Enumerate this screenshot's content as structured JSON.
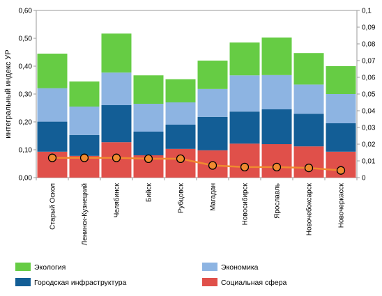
{
  "chart_data": {
    "type": "bar",
    "stacked": true,
    "title": "",
    "ylabel": "интегральный индекс УР",
    "ylim": [
      0,
      0.6
    ],
    "y_ticks": [
      "0,00",
      "0,10",
      "0,20",
      "0,30",
      "0,40",
      "0,50",
      "0,60"
    ],
    "y2lim": [
      0,
      0.1
    ],
    "y2_ticks": [
      "0",
      "0,01",
      "0,02",
      "0,03",
      "0,04",
      "0,05",
      "0,06",
      "0,07",
      "0,08",
      "0,09",
      "0,1"
    ],
    "categories": [
      "Старый Оскол",
      "Ленинск-Кузнецкий",
      "Челябинск",
      "Бийск",
      "Рубцовск",
      "Магадан",
      "Новосибирск",
      "Ярославль",
      "Новочебоксарск",
      "Новочеркасск"
    ],
    "series": [
      {
        "name": "Социальная сфера",
        "color": "#e0504a",
        "values": [
          0.093,
          0.078,
          0.127,
          0.08,
          0.103,
          0.098,
          0.122,
          0.12,
          0.112,
          0.093
        ]
      },
      {
        "name": "Городская инфраструктура",
        "color": "#135e96",
        "values": [
          0.108,
          0.075,
          0.133,
          0.085,
          0.087,
          0.12,
          0.115,
          0.125,
          0.117,
          0.102
        ]
      },
      {
        "name": "Экономика",
        "color": "#8db4e2",
        "values": [
          0.12,
          0.102,
          0.117,
          0.1,
          0.08,
          0.1,
          0.13,
          0.123,
          0.105,
          0.105
        ]
      },
      {
        "name": "Экология",
        "color": "#66cc44",
        "values": [
          0.124,
          0.09,
          0.14,
          0.102,
          0.083,
          0.102,
          0.118,
          0.135,
          0.113,
          0.1
        ]
      }
    ],
    "line_series": {
      "axis": "secondary",
      "line_color": "#f08a30",
      "marker_color": "#f08a30",
      "marker_edge": "#000000",
      "values": [
        0.0118,
        0.0118,
        0.0118,
        0.0113,
        0.0113,
        0.0073,
        0.0063,
        0.0063,
        0.0058,
        0.0043
      ]
    },
    "legend_placement": "bottom",
    "legend_order": [
      "Экология",
      "Экономика",
      "Городская инфраструктура",
      "Социальная сфера"
    ],
    "grid": false
  }
}
